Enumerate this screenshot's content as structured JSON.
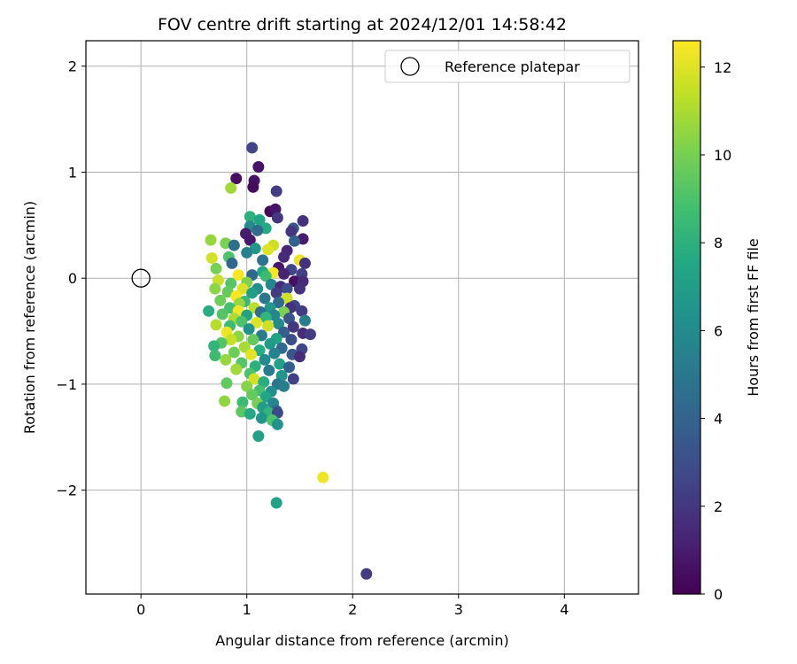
{
  "chart_data": {
    "type": "scatter",
    "title": "FOV centre drift starting at 2024/12/01 14:58:42",
    "xlabel": "Angular distance from reference (arcmin)",
    "ylabel": "Rotation from reference (arcmin)",
    "xlim": [
      -0.52,
      4.7
    ],
    "ylim": [
      -2.98,
      2.24
    ],
    "xticks": [
      0,
      1,
      2,
      3,
      4
    ],
    "xtick_labels": [
      "0",
      "1",
      "2",
      "3",
      "4"
    ],
    "yticks": [
      2,
      1,
      0,
      -1,
      -2
    ],
    "ytick_labels": [
      "2",
      "1",
      "0",
      "−1",
      "−2"
    ],
    "grid": true,
    "legend": {
      "placement": "top-right",
      "entries": [
        {
          "label": "Reference platepar",
          "marker": "open-circle",
          "color": "#000000"
        }
      ]
    },
    "colorbar": {
      "label": "Hours from first FF file",
      "range": [
        0,
        12.6
      ],
      "ticks": [
        0,
        2,
        4,
        6,
        8,
        10,
        12
      ],
      "tick_labels": [
        "0",
        "2",
        "4",
        "6",
        "8",
        "10",
        "12"
      ],
      "colormap": "viridis"
    },
    "reference_point": {
      "x": 0,
      "y": 0
    },
    "series": [
      {
        "marker": "filled-circle",
        "points": [
          [
            1.05,
            1.23,
            2.6
          ],
          [
            1.11,
            1.05,
            0.6
          ],
          [
            0.9,
            0.94,
            0.5
          ],
          [
            1.07,
            0.92,
            0.6
          ],
          [
            1.06,
            0.86,
            0.4
          ],
          [
            0.85,
            0.85,
            10.8
          ],
          [
            1.28,
            0.82,
            2.2
          ],
          [
            1.22,
            0.63,
            0.3
          ],
          [
            1.27,
            0.65,
            0.7
          ],
          [
            1.03,
            0.58,
            8.0
          ],
          [
            1.12,
            0.55,
            7.4
          ],
          [
            1.29,
            0.57,
            2.0
          ],
          [
            1.53,
            0.54,
            1.8
          ],
          [
            1.03,
            0.49,
            6.0
          ],
          [
            1.18,
            0.47,
            7.6
          ],
          [
            1.44,
            0.47,
            3.4
          ],
          [
            1.1,
            0.45,
            4.4
          ],
          [
            0.99,
            0.42,
            1.0
          ],
          [
            1.42,
            0.44,
            2.0
          ],
          [
            0.66,
            0.36,
            10.6
          ],
          [
            1.03,
            0.36,
            0.8
          ],
          [
            1.53,
            0.37,
            1.0
          ],
          [
            1.45,
            0.35,
            4.0
          ],
          [
            0.8,
            0.33,
            10.1
          ],
          [
            0.88,
            0.31,
            4.6
          ],
          [
            1.25,
            0.31,
            11.6
          ],
          [
            1.08,
            0.28,
            6.6
          ],
          [
            1.2,
            0.27,
            12.0
          ],
          [
            1.38,
            0.26,
            1.4
          ],
          [
            1.0,
            0.24,
            5.5
          ],
          [
            0.67,
            0.19,
            11.8
          ],
          [
            0.83,
            0.2,
            9.0
          ],
          [
            1.35,
            0.2,
            1.5
          ],
          [
            1.15,
            0.17,
            4.8
          ],
          [
            1.5,
            0.17,
            12.2
          ],
          [
            0.86,
            0.14,
            4.2
          ],
          [
            1.55,
            0.14,
            1.8
          ],
          [
            0.71,
            0.09,
            10.0
          ],
          [
            1.3,
            0.1,
            0.8
          ],
          [
            1.42,
            0.08,
            2.6
          ],
          [
            1.15,
            0.06,
            7.5
          ],
          [
            1.25,
            0.05,
            12.4
          ],
          [
            1.35,
            0.04,
            1.2
          ],
          [
            1.52,
            0.04,
            2.4
          ],
          [
            0.92,
            0.03,
            12.5
          ],
          [
            1.05,
            0.03,
            4.2
          ],
          [
            1.18,
            0.02,
            8.6
          ],
          [
            0.73,
            -0.02,
            11.6
          ],
          [
            1.0,
            -0.04,
            10.2
          ],
          [
            1.45,
            -0.03,
            0.5
          ],
          [
            1.53,
            -0.03,
            1.5
          ],
          [
            0.85,
            -0.05,
            9.2
          ],
          [
            1.23,
            -0.06,
            5.8
          ],
          [
            1.32,
            -0.08,
            1.5
          ],
          [
            0.7,
            -0.1,
            10.4
          ],
          [
            0.96,
            -0.1,
            11.9
          ],
          [
            1.1,
            -0.1,
            6.2
          ],
          [
            1.38,
            -0.1,
            3.0
          ],
          [
            1.5,
            -0.1,
            1.8
          ],
          [
            0.82,
            -0.13,
            9.6
          ],
          [
            1.05,
            -0.14,
            7.0
          ],
          [
            1.28,
            -0.14,
            2.2
          ],
          [
            0.9,
            -0.17,
            12.5
          ],
          [
            1.17,
            -0.19,
            5.0
          ],
          [
            1.38,
            -0.19,
            11.7
          ],
          [
            0.75,
            -0.21,
            9.8
          ],
          [
            0.98,
            -0.22,
            8.4
          ],
          [
            1.3,
            -0.23,
            4.4
          ],
          [
            0.93,
            -0.24,
            10.6
          ],
          [
            1.45,
            -0.26,
            2.6
          ],
          [
            0.84,
            -0.28,
            8.8
          ],
          [
            1.07,
            -0.28,
            11.3
          ],
          [
            1.22,
            -0.28,
            6.6
          ],
          [
            1.41,
            -0.28,
            1.9
          ],
          [
            0.64,
            -0.31,
            7.8
          ],
          [
            0.92,
            -0.31,
            12.4
          ],
          [
            1.13,
            -0.32,
            4.6
          ],
          [
            1.35,
            -0.32,
            10.1
          ],
          [
            1.52,
            -0.31,
            2.3
          ],
          [
            0.77,
            -0.34,
            9.2
          ],
          [
            1.0,
            -0.35,
            7.2
          ],
          [
            1.26,
            -0.35,
            5.8
          ],
          [
            0.88,
            -0.38,
            11.0
          ],
          [
            1.18,
            -0.37,
            8.2
          ],
          [
            1.4,
            -0.38,
            3.3
          ],
          [
            1.55,
            -0.4,
            5.4
          ],
          [
            0.95,
            -0.41,
            9.0
          ],
          [
            1.09,
            -0.42,
            12.0
          ],
          [
            1.3,
            -0.43,
            6.0
          ],
          [
            0.71,
            -0.44,
            11.2
          ],
          [
            0.84,
            -0.45,
            8.6
          ],
          [
            1.2,
            -0.45,
            11.7
          ],
          [
            1.44,
            -0.46,
            2.0
          ],
          [
            1.02,
            -0.48,
            6.4
          ],
          [
            0.81,
            -0.51,
            12.3
          ],
          [
            1.35,
            -0.51,
            3.8
          ],
          [
            1.53,
            -0.52,
            1.6
          ],
          [
            1.6,
            -0.53,
            2.2
          ],
          [
            0.92,
            -0.55,
            10.4
          ],
          [
            1.14,
            -0.54,
            5.2
          ],
          [
            1.28,
            -0.57,
            7.4
          ],
          [
            0.85,
            -0.58,
            11.5
          ],
          [
            1.06,
            -0.58,
            9.6
          ],
          [
            1.42,
            -0.58,
            3.0
          ],
          [
            0.76,
            -0.61,
            9.2
          ],
          [
            1.22,
            -0.62,
            6.8
          ],
          [
            0.69,
            -0.64,
            8.2
          ],
          [
            0.98,
            -0.65,
            10.9
          ],
          [
            1.33,
            -0.66,
            4.4
          ],
          [
            1.12,
            -0.68,
            7.7
          ],
          [
            1.52,
            -0.67,
            2.6
          ],
          [
            0.88,
            -0.7,
            9.8
          ],
          [
            1.26,
            -0.71,
            5.6
          ],
          [
            0.7,
            -0.73,
            8.6
          ],
          [
            1.04,
            -0.72,
            12.1
          ],
          [
            1.43,
            -0.72,
            3.4
          ],
          [
            1.5,
            -0.74,
            1.6
          ],
          [
            0.8,
            -0.77,
            10.6
          ],
          [
            1.17,
            -0.77,
            6.0
          ],
          [
            0.95,
            -0.8,
            9.2
          ],
          [
            1.31,
            -0.81,
            7.2
          ],
          [
            1.08,
            -0.83,
            8.0
          ],
          [
            1.4,
            -0.84,
            3.8
          ],
          [
            0.9,
            -0.86,
            10.8
          ],
          [
            1.21,
            -0.87,
            5.2
          ],
          [
            1.03,
            -0.9,
            9.0
          ],
          [
            1.33,
            -0.92,
            6.6
          ],
          [
            1.44,
            -0.95,
            2.4
          ],
          [
            1.07,
            -0.95,
            11.8
          ],
          [
            0.81,
            -0.99,
            9.5
          ],
          [
            1.16,
            -0.98,
            7.8
          ],
          [
            1.29,
            -1.0,
            4.8
          ],
          [
            1.0,
            -1.02,
            10.3
          ],
          [
            1.35,
            -1.02,
            5.4
          ],
          [
            1.12,
            -1.06,
            8.8
          ],
          [
            1.23,
            -1.07,
            6.2
          ],
          [
            1.05,
            -1.1,
            9.6
          ],
          [
            1.18,
            -1.12,
            7.4
          ],
          [
            0.79,
            -1.16,
            10.5
          ],
          [
            0.96,
            -1.17,
            8.6
          ],
          [
            1.1,
            -1.18,
            10.0
          ],
          [
            1.25,
            -1.18,
            5.8
          ],
          [
            1.15,
            -1.22,
            7.0
          ],
          [
            1.28,
            -1.25,
            4.2
          ],
          [
            0.95,
            -1.26,
            9.4
          ],
          [
            1.21,
            -1.27,
            8.2
          ],
          [
            1.29,
            -1.27,
            2.8
          ],
          [
            1.03,
            -1.28,
            7.6
          ],
          [
            1.14,
            -1.32,
            6.6
          ],
          [
            1.24,
            -1.34,
            9.0
          ],
          [
            1.29,
            -1.38,
            6.4
          ],
          [
            1.11,
            -1.49,
            7.2
          ],
          [
            1.72,
            -1.88,
            12.3
          ],
          [
            1.28,
            -2.12,
            7.2
          ],
          [
            2.13,
            -2.79,
            2.2
          ]
        ]
      }
    ]
  }
}
